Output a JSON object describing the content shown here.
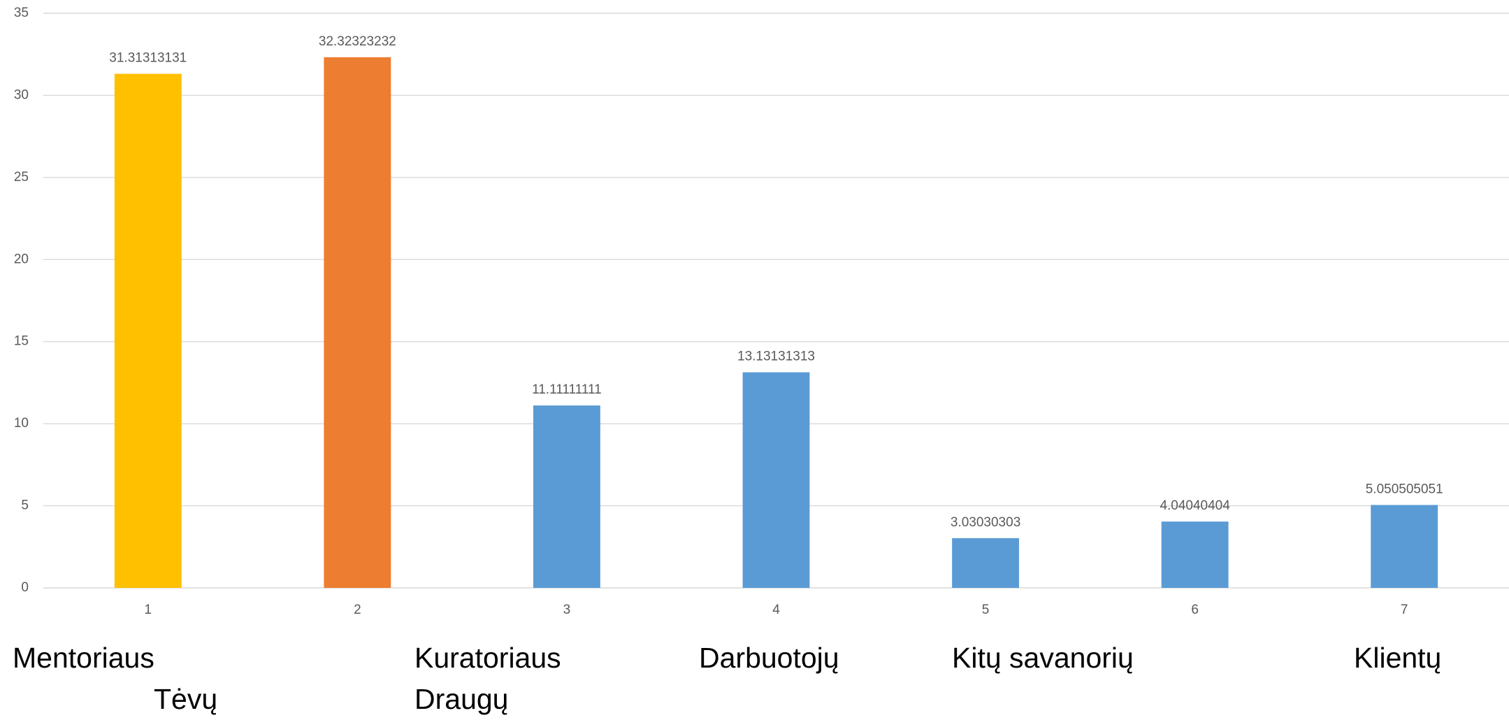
{
  "chart_data": {
    "type": "bar",
    "categories": [
      "1",
      "2",
      "3",
      "4",
      "5",
      "6",
      "7"
    ],
    "values": [
      31.31313131,
      32.32323232,
      11.11111111,
      13.13131313,
      3.03030303,
      4.04040404,
      5.050505051
    ],
    "colors": [
      "#ffc000",
      "#ed7d31",
      "#5b9bd5",
      "#5b9bd5",
      "#5b9bd5",
      "#5b9bd5",
      "#5b9bd5"
    ],
    "ylim": [
      0,
      35
    ],
    "yticks": [
      0,
      5,
      10,
      15,
      20,
      25,
      30,
      35
    ],
    "grid": true,
    "annotations": [
      "Mentoriaus",
      "Tėvų",
      "Kuratoriaus",
      "Draugų",
      "Darbuotojų",
      "Kitų savanorių",
      "Klientų"
    ]
  }
}
